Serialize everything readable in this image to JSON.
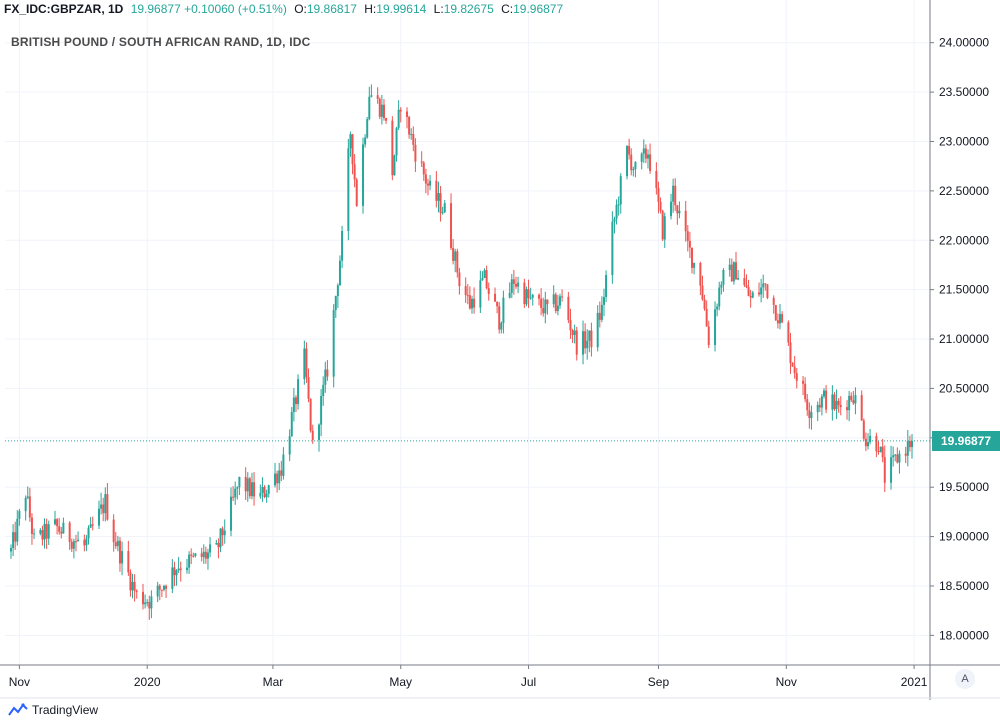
{
  "header": {
    "symbol": "FX_IDC:GBPZAR, 1D",
    "last": "19.96877",
    "change": "+0.10060 (+0.51%)",
    "o_label": "O:",
    "open": "19.86817",
    "h_label": "H:",
    "high": "19.99614",
    "l_label": "L:",
    "low": "19.82675",
    "c_label": "C:",
    "close": "19.96877"
  },
  "footer": {
    "brand": "TradingView",
    "auto_label": "A"
  },
  "colors": {
    "up": "#26a69a",
    "down": "#ef5350",
    "grid": "#f0f3fa",
    "axis": "#787b86"
  },
  "chart_data": {
    "type": "candlestick",
    "title": "BRITISH POUND / SOUTH AFRICAN RAND, 1D, IDC",
    "last_price_label": "19.96877",
    "y_ticks": [
      "18.00000",
      "18.50000",
      "19.00000",
      "19.50000",
      "20.00000",
      "20.50000",
      "21.00000",
      "21.50000",
      "22.00000",
      "22.50000",
      "23.00000",
      "23.50000",
      "24.00000"
    ],
    "ylim": [
      17.7,
      24.25
    ],
    "x_ticks": [
      {
        "label": "Nov",
        "date": "2019-11-01"
      },
      {
        "label": "2020",
        "date": "2020-01-01"
      },
      {
        "label": "Mar",
        "date": "2020-03-01"
      },
      {
        "label": "May",
        "date": "2020-05-01"
      },
      {
        "label": "Jul",
        "date": "2020-07-01"
      },
      {
        "label": "Sep",
        "date": "2020-09-01"
      },
      {
        "label": "Nov",
        "date": "2020-11-01"
      },
      {
        "label": "2021",
        "date": "2021-01-01"
      }
    ],
    "date_range": [
      "2019-10-28",
      "2020-12-31"
    ],
    "anchors": [
      {
        "date": "2019-10-28",
        "close": 18.85
      },
      {
        "date": "2019-11-04",
        "close": 19.45
      },
      {
        "date": "2019-11-08",
        "close": 18.95
      },
      {
        "date": "2019-11-18",
        "close": 19.1
      },
      {
        "date": "2019-12-02",
        "close": 18.9
      },
      {
        "date": "2019-12-12",
        "close": 19.35
      },
      {
        "date": "2019-12-16",
        "close": 19.0
      },
      {
        "date": "2019-12-27",
        "close": 18.4
      },
      {
        "date": "2020-01-03",
        "close": 18.35
      },
      {
        "date": "2020-01-15",
        "close": 18.7
      },
      {
        "date": "2020-02-03",
        "close": 18.85
      },
      {
        "date": "2020-02-14",
        "close": 19.55
      },
      {
        "date": "2020-02-24",
        "close": 19.4
      },
      {
        "date": "2020-03-05",
        "close": 19.7
      },
      {
        "date": "2020-03-10",
        "close": 20.2
      },
      {
        "date": "2020-03-16",
        "close": 20.8
      },
      {
        "date": "2020-03-20",
        "close": 19.9
      },
      {
        "date": "2020-03-27",
        "close": 20.7
      },
      {
        "date": "2020-04-03",
        "close": 22.0
      },
      {
        "date": "2020-04-07",
        "close": 23.1
      },
      {
        "date": "2020-04-10",
        "close": 22.4
      },
      {
        "date": "2020-04-16",
        "close": 23.5
      },
      {
        "date": "2020-04-23",
        "close": 23.3
      },
      {
        "date": "2020-04-27",
        "close": 22.7
      },
      {
        "date": "2020-05-01",
        "close": 23.4
      },
      {
        "date": "2020-05-08",
        "close": 22.9
      },
      {
        "date": "2020-05-15",
        "close": 22.5
      },
      {
        "date": "2020-05-22",
        "close": 22.3
      },
      {
        "date": "2020-05-29",
        "close": 21.6
      },
      {
        "date": "2020-06-03",
        "close": 21.35
      },
      {
        "date": "2020-06-10",
        "close": 21.6
      },
      {
        "date": "2020-06-17",
        "close": 21.2
      },
      {
        "date": "2020-06-24",
        "close": 21.6
      },
      {
        "date": "2020-07-01",
        "close": 21.4
      },
      {
        "date": "2020-07-10",
        "close": 21.3
      },
      {
        "date": "2020-07-17",
        "close": 21.4
      },
      {
        "date": "2020-07-24",
        "close": 20.95
      },
      {
        "date": "2020-07-31",
        "close": 21.0
      },
      {
        "date": "2020-08-05",
        "close": 21.3
      },
      {
        "date": "2020-08-10",
        "close": 22.1
      },
      {
        "date": "2020-08-17",
        "close": 22.9
      },
      {
        "date": "2020-08-21",
        "close": 22.7
      },
      {
        "date": "2020-08-27",
        "close": 22.9
      },
      {
        "date": "2020-09-03",
        "close": 22.1
      },
      {
        "date": "2020-09-08",
        "close": 22.5
      },
      {
        "date": "2020-09-14",
        "close": 22.0
      },
      {
        "date": "2020-09-21",
        "close": 21.6
      },
      {
        "date": "2020-09-25",
        "close": 21.0
      },
      {
        "date": "2020-10-01",
        "close": 21.6
      },
      {
        "date": "2020-10-08",
        "close": 21.7
      },
      {
        "date": "2020-10-15",
        "close": 21.4
      },
      {
        "date": "2020-10-22",
        "close": 21.55
      },
      {
        "date": "2020-10-29",
        "close": 21.2
      },
      {
        "date": "2020-11-05",
        "close": 20.7
      },
      {
        "date": "2020-11-12",
        "close": 20.3
      },
      {
        "date": "2020-11-19",
        "close": 20.4
      },
      {
        "date": "2020-11-26",
        "close": 20.3
      },
      {
        "date": "2020-12-03",
        "close": 20.45
      },
      {
        "date": "2020-12-09",
        "close": 20.0
      },
      {
        "date": "2020-12-15",
        "close": 19.95
      },
      {
        "date": "2020-12-18",
        "close": 19.6
      },
      {
        "date": "2020-12-24",
        "close": 19.8
      },
      {
        "date": "2020-12-31",
        "close": 19.96877
      }
    ]
  }
}
